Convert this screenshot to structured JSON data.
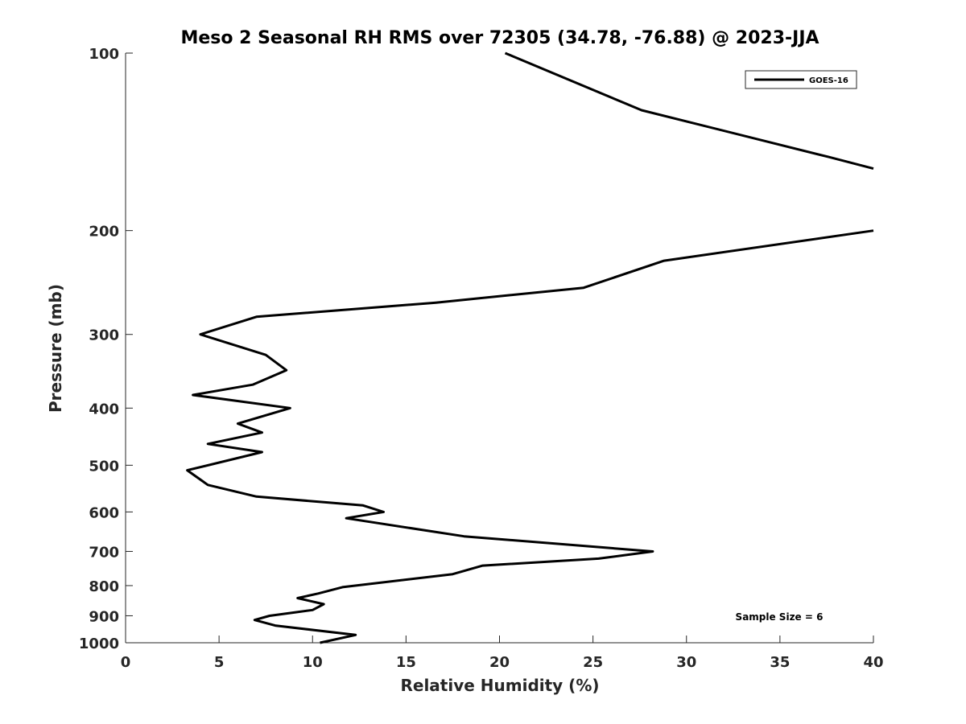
{
  "chart_data": {
    "type": "line",
    "title": "Meso 2 Seasonal RH RMS over 72305 (34.78, -76.88) @ 2023-JJA",
    "xlabel": "Relative Humidity (%)",
    "ylabel": "Pressure (mb)",
    "xlim": [
      0,
      40
    ],
    "ylim": [
      1000,
      100
    ],
    "y_scale": "log",
    "x_ticks": [
      0,
      5,
      10,
      15,
      20,
      25,
      30,
      35,
      40
    ],
    "y_ticks": [
      100,
      200,
      300,
      400,
      500,
      600,
      700,
      800,
      900,
      1000
    ],
    "legend": {
      "position": "top-right",
      "entries": [
        "GOES-16"
      ]
    },
    "annotation": "Sample Size = 6",
    "series": [
      {
        "name": "GOES-16",
        "color": "#000000",
        "points": [
          {
            "x": 20.3,
            "p": 100
          },
          {
            "x": 27.6,
            "p": 125
          },
          {
            "x": 37.6,
            "p": 150
          },
          {
            "x": 40.0,
            "p": 157
          },
          {
            "x": null,
            "p": 190
          },
          {
            "x": 40.0,
            "p": 200
          },
          {
            "x": 28.8,
            "p": 225
          },
          {
            "x": 24.5,
            "p": 250
          },
          {
            "x": 16.6,
            "p": 265
          },
          {
            "x": 7.0,
            "p": 280
          },
          {
            "x": 4.0,
            "p": 300
          },
          {
            "x": 7.5,
            "p": 325
          },
          {
            "x": 8.6,
            "p": 345
          },
          {
            "x": 6.8,
            "p": 365
          },
          {
            "x": 3.6,
            "p": 380
          },
          {
            "x": 8.8,
            "p": 400
          },
          {
            "x": 6.0,
            "p": 425
          },
          {
            "x": 7.3,
            "p": 440
          },
          {
            "x": 4.4,
            "p": 460
          },
          {
            "x": 7.3,
            "p": 475
          },
          {
            "x": 3.3,
            "p": 510
          },
          {
            "x": 4.4,
            "p": 540
          },
          {
            "x": 7.0,
            "p": 565
          },
          {
            "x": 12.7,
            "p": 585
          },
          {
            "x": 13.8,
            "p": 600
          },
          {
            "x": 11.8,
            "p": 615
          },
          {
            "x": 18.1,
            "p": 660
          },
          {
            "x": 28.2,
            "p": 700
          },
          {
            "x": 25.3,
            "p": 720
          },
          {
            "x": 19.1,
            "p": 740
          },
          {
            "x": 17.5,
            "p": 765
          },
          {
            "x": 11.6,
            "p": 805
          },
          {
            "x": 10.3,
            "p": 825
          },
          {
            "x": 9.2,
            "p": 840
          },
          {
            "x": 10.6,
            "p": 860
          },
          {
            "x": 10.0,
            "p": 880
          },
          {
            "x": 7.7,
            "p": 900
          },
          {
            "x": 6.9,
            "p": 915
          },
          {
            "x": 8.0,
            "p": 935
          },
          {
            "x": 12.3,
            "p": 970
          },
          {
            "x": 10.4,
            "p": 1000
          }
        ]
      }
    ]
  }
}
